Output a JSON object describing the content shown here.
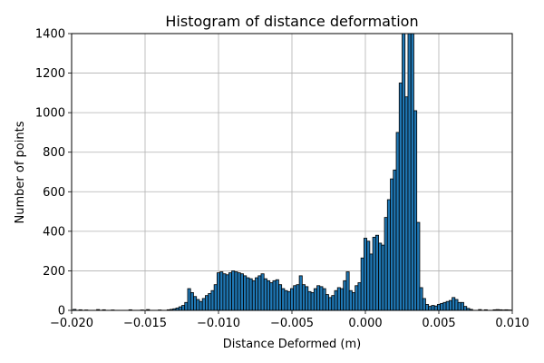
{
  "chart_data": {
    "type": "bar",
    "title": "Histogram of distance deformation",
    "xlabel": "Distance Deformed (m)",
    "ylabel": "Number of points",
    "xlim": [
      -0.02,
      0.01
    ],
    "ylim": [
      0,
      1400
    ],
    "grid": true,
    "xticks": [
      -0.02,
      -0.015,
      -0.01,
      -0.005,
      0.0,
      0.005,
      0.01
    ],
    "xtick_labels": [
      "−0.020",
      "−0.015",
      "−0.010",
      "−0.005",
      "0.000",
      "0.005",
      "0.010"
    ],
    "yticks": [
      0,
      200,
      400,
      600,
      800,
      1000,
      1200,
      1400
    ],
    "ytick_labels": [
      "0",
      "200",
      "400",
      "600",
      "800",
      "1000",
      "1200",
      "1400"
    ],
    "bar_color": "#1f77b4",
    "edge_color": "#000000",
    "bins": [
      {
        "x": -0.0198,
        "y": 5
      },
      {
        "x": -0.0194,
        "y": 3
      },
      {
        "x": -0.019,
        "y": 2
      },
      {
        "x": -0.0182,
        "y": 4
      },
      {
        "x": -0.0178,
        "y": 3
      },
      {
        "x": -0.0172,
        "y": 2
      },
      {
        "x": -0.016,
        "y": 3
      },
      {
        "x": -0.0152,
        "y": 2
      },
      {
        "x": -0.0148,
        "y": 4
      },
      {
        "x": -0.014,
        "y": 2
      },
      {
        "x": -0.0134,
        "y": 3
      },
      {
        "x": -0.0132,
        "y": 5
      },
      {
        "x": -0.013,
        "y": 8
      },
      {
        "x": -0.0128,
        "y": 12
      },
      {
        "x": -0.0126,
        "y": 18
      },
      {
        "x": -0.0124,
        "y": 25
      },
      {
        "x": -0.0122,
        "y": 40
      },
      {
        "x": -0.012,
        "y": 110
      },
      {
        "x": -0.0118,
        "y": 90
      },
      {
        "x": -0.0116,
        "y": 70
      },
      {
        "x": -0.0114,
        "y": 55
      },
      {
        "x": -0.0112,
        "y": 45
      },
      {
        "x": -0.011,
        "y": 60
      },
      {
        "x": -0.0108,
        "y": 75
      },
      {
        "x": -0.0106,
        "y": 85
      },
      {
        "x": -0.0104,
        "y": 100
      },
      {
        "x": -0.0102,
        "y": 130
      },
      {
        "x": -0.01,
        "y": 190
      },
      {
        "x": -0.0098,
        "y": 195
      },
      {
        "x": -0.0096,
        "y": 185
      },
      {
        "x": -0.0094,
        "y": 180
      },
      {
        "x": -0.0092,
        "y": 190
      },
      {
        "x": -0.009,
        "y": 200
      },
      {
        "x": -0.0088,
        "y": 195
      },
      {
        "x": -0.0086,
        "y": 190
      },
      {
        "x": -0.0084,
        "y": 185
      },
      {
        "x": -0.0082,
        "y": 175
      },
      {
        "x": -0.008,
        "y": 165
      },
      {
        "x": -0.0078,
        "y": 160
      },
      {
        "x": -0.0076,
        "y": 150
      },
      {
        "x": -0.0074,
        "y": 165
      },
      {
        "x": -0.0072,
        "y": 175
      },
      {
        "x": -0.007,
        "y": 185
      },
      {
        "x": -0.0068,
        "y": 160
      },
      {
        "x": -0.0066,
        "y": 150
      },
      {
        "x": -0.0064,
        "y": 140
      },
      {
        "x": -0.0062,
        "y": 150
      },
      {
        "x": -0.006,
        "y": 155
      },
      {
        "x": -0.0058,
        "y": 130
      },
      {
        "x": -0.0056,
        "y": 110
      },
      {
        "x": -0.0054,
        "y": 100
      },
      {
        "x": -0.0052,
        "y": 95
      },
      {
        "x": -0.005,
        "y": 110
      },
      {
        "x": -0.0048,
        "y": 125
      },
      {
        "x": -0.0046,
        "y": 130
      },
      {
        "x": -0.0044,
        "y": 175
      },
      {
        "x": -0.0042,
        "y": 130
      },
      {
        "x": -0.004,
        "y": 120
      },
      {
        "x": -0.0038,
        "y": 95
      },
      {
        "x": -0.0036,
        "y": 90
      },
      {
        "x": -0.0034,
        "y": 110
      },
      {
        "x": -0.0032,
        "y": 125
      },
      {
        "x": -0.003,
        "y": 120
      },
      {
        "x": -0.0028,
        "y": 110
      },
      {
        "x": -0.0026,
        "y": 80
      },
      {
        "x": -0.0024,
        "y": 65
      },
      {
        "x": -0.0022,
        "y": 75
      },
      {
        "x": -0.002,
        "y": 100
      },
      {
        "x": -0.0018,
        "y": 115
      },
      {
        "x": -0.0016,
        "y": 110
      },
      {
        "x": -0.0014,
        "y": 150
      },
      {
        "x": -0.0012,
        "y": 195
      },
      {
        "x": -0.001,
        "y": 100
      },
      {
        "x": -0.0008,
        "y": 90
      },
      {
        "x": -0.0006,
        "y": 125
      },
      {
        "x": -0.0004,
        "y": 140
      },
      {
        "x": -0.0002,
        "y": 265
      },
      {
        "x": 0.0,
        "y": 365
      },
      {
        "x": 0.0002,
        "y": 350
      },
      {
        "x": 0.0004,
        "y": 285
      },
      {
        "x": 0.0006,
        "y": 370
      },
      {
        "x": 0.0008,
        "y": 380
      },
      {
        "x": 0.001,
        "y": 340
      },
      {
        "x": 0.0012,
        "y": 330
      },
      {
        "x": 0.0014,
        "y": 470
      },
      {
        "x": 0.0016,
        "y": 560
      },
      {
        "x": 0.0018,
        "y": 665
      },
      {
        "x": 0.002,
        "y": 710
      },
      {
        "x": 0.0022,
        "y": 900
      },
      {
        "x": 0.0024,
        "y": 1150
      },
      {
        "x": 0.0026,
        "y": 1400
      },
      {
        "x": 0.0028,
        "y": 1080
      },
      {
        "x": 0.003,
        "y": 1400
      },
      {
        "x": 0.0032,
        "y": 1400
      },
      {
        "x": 0.0034,
        "y": 1010
      },
      {
        "x": 0.0036,
        "y": 445
      },
      {
        "x": 0.0038,
        "y": 115
      },
      {
        "x": 0.004,
        "y": 60
      },
      {
        "x": 0.0042,
        "y": 30
      },
      {
        "x": 0.0044,
        "y": 20
      },
      {
        "x": 0.0046,
        "y": 25
      },
      {
        "x": 0.0048,
        "y": 22
      },
      {
        "x": 0.005,
        "y": 30
      },
      {
        "x": 0.0052,
        "y": 35
      },
      {
        "x": 0.0054,
        "y": 40
      },
      {
        "x": 0.0056,
        "y": 45
      },
      {
        "x": 0.0058,
        "y": 50
      },
      {
        "x": 0.006,
        "y": 65
      },
      {
        "x": 0.0062,
        "y": 55
      },
      {
        "x": 0.0064,
        "y": 40
      },
      {
        "x": 0.0066,
        "y": 40
      },
      {
        "x": 0.0068,
        "y": 20
      },
      {
        "x": 0.007,
        "y": 10
      },
      {
        "x": 0.0072,
        "y": 5
      },
      {
        "x": 0.0078,
        "y": 4
      },
      {
        "x": 0.0082,
        "y": 3
      },
      {
        "x": 0.0088,
        "y": 3
      },
      {
        "x": 0.009,
        "y": 4
      },
      {
        "x": 0.0092,
        "y": 3
      },
      {
        "x": 0.0094,
        "y": 2
      },
      {
        "x": 0.0096,
        "y": 3
      },
      {
        "x": 0.0098,
        "y": 2
      }
    ]
  }
}
